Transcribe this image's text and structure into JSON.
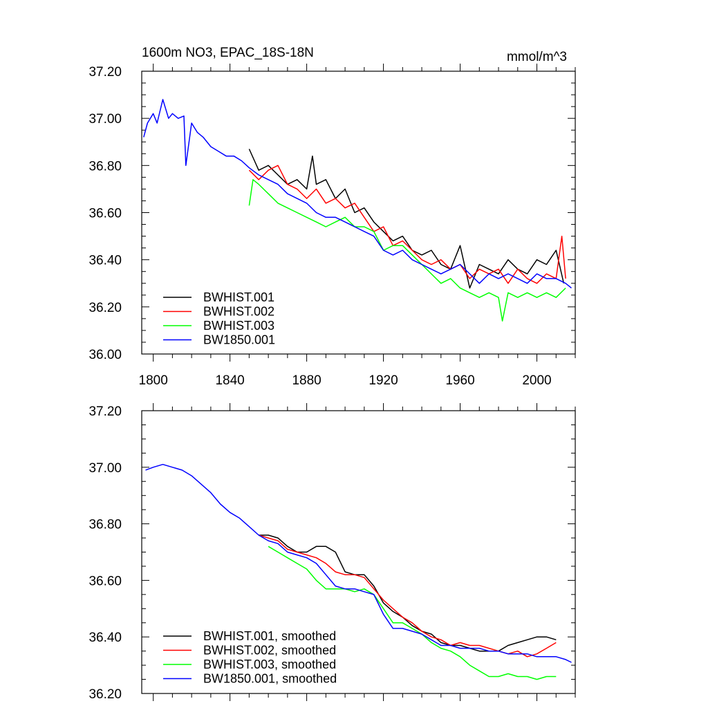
{
  "chart_data": [
    {
      "type": "line",
      "title": "1600m NO3, EPAC_18S-18N",
      "units": "mmol/m^3",
      "xlabel": "",
      "ylabel": "",
      "xlim": [
        1794,
        2020
      ],
      "ylim": [
        36.0,
        37.2
      ],
      "xticks": [
        1800,
        1840,
        1880,
        1920,
        1960,
        2000
      ],
      "xtick_labels": [
        "1800",
        "1840",
        "1880",
        "1920",
        "1960",
        "2000"
      ],
      "yticks": [
        36.0,
        36.2,
        36.4,
        36.6,
        36.8,
        37.0,
        37.2
      ],
      "ytick_labels": [
        "36.00",
        "36.20",
        "36.40",
        "36.60",
        "36.80",
        "37.00",
        "37.20"
      ],
      "legend_position": "bottom-left",
      "series": [
        {
          "name": "BWHIST.001",
          "color": "#000000",
          "x": [
            1850,
            1855,
            1860,
            1865,
            1870,
            1875,
            1880,
            1883,
            1885,
            1890,
            1895,
            1900,
            1905,
            1910,
            1915,
            1920,
            1925,
            1930,
            1935,
            1940,
            1945,
            1950,
            1955,
            1960,
            1965,
            1970,
            1975,
            1980,
            1985,
            1990,
            1995,
            2000,
            2005,
            2010,
            2014
          ],
          "y": [
            36.87,
            36.78,
            36.8,
            36.76,
            36.72,
            36.74,
            36.7,
            36.84,
            36.72,
            36.74,
            36.66,
            36.7,
            36.6,
            36.62,
            36.56,
            36.52,
            36.48,
            36.5,
            36.44,
            36.42,
            36.44,
            36.38,
            36.36,
            36.46,
            36.28,
            36.38,
            36.36,
            36.34,
            36.4,
            36.36,
            36.34,
            36.4,
            36.38,
            36.44,
            36.3
          ]
        },
        {
          "name": "BWHIST.002",
          "color": "#ff0000",
          "x": [
            1850,
            1855,
            1860,
            1865,
            1870,
            1875,
            1880,
            1885,
            1890,
            1895,
            1900,
            1905,
            1910,
            1915,
            1920,
            1925,
            1930,
            1935,
            1940,
            1945,
            1950,
            1955,
            1960,
            1965,
            1970,
            1975,
            1980,
            1985,
            1990,
            1995,
            2000,
            2005,
            2010,
            2013,
            2015
          ],
          "y": [
            36.78,
            36.74,
            36.78,
            36.8,
            36.72,
            36.7,
            36.66,
            36.7,
            36.64,
            36.66,
            36.62,
            36.64,
            36.58,
            36.52,
            36.54,
            36.46,
            36.48,
            36.44,
            36.4,
            36.38,
            36.4,
            36.36,
            36.38,
            36.32,
            36.36,
            36.34,
            36.36,
            36.3,
            36.36,
            36.32,
            36.3,
            36.34,
            36.32,
            36.5,
            36.32
          ]
        },
        {
          "name": "BWHIST.003",
          "color": "#00ff00",
          "x": [
            1850,
            1852,
            1855,
            1860,
            1865,
            1870,
            1875,
            1880,
            1885,
            1890,
            1895,
            1900,
            1905,
            1910,
            1915,
            1920,
            1925,
            1930,
            1935,
            1940,
            1945,
            1950,
            1955,
            1960,
            1965,
            1970,
            1975,
            1980,
            1982,
            1985,
            1990,
            1995,
            2000,
            2005,
            2010,
            2015
          ],
          "y": [
            36.63,
            36.74,
            36.72,
            36.68,
            36.64,
            36.62,
            36.6,
            36.58,
            36.56,
            36.54,
            36.56,
            36.58,
            36.54,
            36.54,
            36.52,
            36.44,
            36.46,
            36.46,
            36.42,
            36.38,
            36.34,
            36.3,
            36.32,
            36.28,
            36.26,
            36.24,
            36.26,
            36.24,
            36.14,
            36.26,
            36.24,
            36.26,
            36.24,
            36.26,
            36.24,
            36.28
          ]
        },
        {
          "name": "BW1850.001",
          "color": "#0000ff",
          "x": [
            1795,
            1797,
            1800,
            1802,
            1805,
            1808,
            1810,
            1813,
            1816,
            1817,
            1820,
            1823,
            1826,
            1830,
            1834,
            1838,
            1842,
            1846,
            1850,
            1855,
            1860,
            1865,
            1870,
            1875,
            1880,
            1885,
            1890,
            1895,
            1900,
            1905,
            1910,
            1915,
            1920,
            1925,
            1930,
            1935,
            1940,
            1945,
            1950,
            1955,
            1960,
            1965,
            1970,
            1975,
            1980,
            1985,
            1990,
            1995,
            2000,
            2005,
            2010,
            2015,
            2018
          ],
          "y": [
            36.92,
            36.98,
            37.02,
            36.98,
            37.08,
            37.0,
            37.02,
            37.0,
            37.01,
            36.8,
            36.98,
            36.94,
            36.92,
            36.88,
            36.86,
            36.84,
            36.84,
            36.82,
            36.79,
            36.76,
            36.74,
            36.72,
            36.68,
            36.66,
            36.64,
            36.6,
            36.58,
            36.58,
            36.56,
            36.54,
            36.52,
            36.5,
            36.44,
            36.42,
            36.44,
            36.4,
            36.38,
            36.36,
            36.34,
            36.36,
            36.38,
            36.34,
            36.3,
            36.34,
            36.32,
            36.34,
            36.32,
            36.3,
            36.34,
            36.32,
            36.32,
            36.3,
            36.28
          ]
        }
      ]
    },
    {
      "type": "line",
      "title": "",
      "xlabel": "",
      "ylabel": "",
      "xlim": [
        1794,
        2020
      ],
      "ylim": [
        36.2,
        37.2
      ],
      "yticks": [
        36.2,
        36.4,
        36.6,
        36.8,
        37.0,
        37.2
      ],
      "ytick_labels": [
        "36.20",
        "36.40",
        "36.60",
        "36.80",
        "37.00",
        "37.20"
      ],
      "legend_position": "bottom-left",
      "series": [
        {
          "name": "BWHIST.001, smoothed",
          "color": "#000000",
          "x": [
            1855,
            1860,
            1865,
            1870,
            1875,
            1880,
            1885,
            1890,
            1895,
            1900,
            1905,
            1910,
            1915,
            1920,
            1925,
            1930,
            1935,
            1940,
            1945,
            1950,
            1955,
            1960,
            1965,
            1970,
            1975,
            1980,
            1985,
            1990,
            1995,
            2000,
            2005,
            2010
          ],
          "y": [
            36.76,
            36.76,
            36.75,
            36.72,
            36.7,
            36.7,
            36.72,
            36.72,
            36.7,
            36.63,
            36.62,
            36.62,
            36.58,
            36.52,
            36.49,
            36.47,
            36.44,
            36.42,
            36.41,
            36.38,
            36.37,
            36.37,
            36.36,
            36.35,
            36.35,
            36.35,
            36.37,
            36.38,
            36.39,
            36.4,
            36.4,
            36.39
          ]
        },
        {
          "name": "BWHIST.002, smoothed",
          "color": "#ff0000",
          "x": [
            1855,
            1860,
            1865,
            1870,
            1875,
            1880,
            1885,
            1890,
            1895,
            1900,
            1905,
            1910,
            1915,
            1920,
            1925,
            1930,
            1935,
            1940,
            1945,
            1950,
            1955,
            1960,
            1965,
            1970,
            1975,
            1980,
            1985,
            1990,
            1995,
            2000,
            2005,
            2010
          ],
          "y": [
            36.76,
            36.75,
            36.74,
            36.71,
            36.7,
            36.69,
            36.68,
            36.66,
            36.63,
            36.62,
            36.62,
            36.61,
            36.57,
            36.53,
            36.5,
            36.47,
            36.45,
            36.42,
            36.4,
            36.39,
            36.37,
            36.38,
            36.37,
            36.37,
            36.36,
            36.35,
            36.34,
            36.35,
            36.33,
            36.34,
            36.36,
            36.38
          ]
        },
        {
          "name": "BWHIST.003, smoothed",
          "color": "#00ff00",
          "x": [
            1860,
            1865,
            1870,
            1875,
            1880,
            1885,
            1890,
            1895,
            1900,
            1905,
            1910,
            1915,
            1920,
            1925,
            1930,
            1935,
            1940,
            1945,
            1950,
            1955,
            1960,
            1965,
            1970,
            1975,
            1980,
            1985,
            1990,
            1995,
            2000,
            2005,
            2010
          ],
          "y": [
            36.72,
            36.7,
            36.68,
            36.66,
            36.64,
            36.6,
            36.57,
            36.57,
            36.57,
            36.56,
            36.57,
            36.55,
            36.5,
            36.45,
            36.45,
            36.43,
            36.41,
            36.38,
            36.36,
            36.35,
            36.33,
            36.3,
            36.28,
            36.26,
            36.26,
            36.27,
            36.26,
            36.26,
            36.25,
            36.26,
            36.26
          ]
        },
        {
          "name": "BW1850.001, smoothed",
          "color": "#0000ff",
          "x": [
            1796,
            1800,
            1805,
            1810,
            1815,
            1820,
            1825,
            1830,
            1835,
            1840,
            1845,
            1850,
            1855,
            1860,
            1865,
            1870,
            1875,
            1880,
            1885,
            1890,
            1895,
            1900,
            1905,
            1910,
            1915,
            1920,
            1925,
            1930,
            1935,
            1940,
            1945,
            1950,
            1955,
            1960,
            1965,
            1970,
            1975,
            1980,
            1985,
            1990,
            1995,
            2000,
            2005,
            2010,
            2015,
            2018
          ],
          "y": [
            36.99,
            37.0,
            37.01,
            37.0,
            36.99,
            36.97,
            36.94,
            36.91,
            36.87,
            36.84,
            36.82,
            36.79,
            36.76,
            36.74,
            36.73,
            36.7,
            36.69,
            36.68,
            36.66,
            36.62,
            36.58,
            36.57,
            36.57,
            36.56,
            36.55,
            36.48,
            36.43,
            36.43,
            36.42,
            36.41,
            36.39,
            36.37,
            36.37,
            36.36,
            36.36,
            36.36,
            36.35,
            36.35,
            36.34,
            36.34,
            36.34,
            36.33,
            36.33,
            36.33,
            36.32,
            36.31
          ]
        }
      ]
    }
  ]
}
